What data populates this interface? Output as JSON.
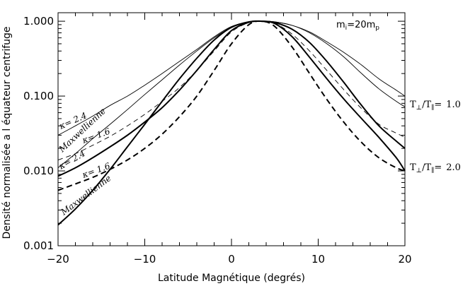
{
  "chart_data": {
    "type": "line",
    "title": "",
    "xlabel": "Latitude Magnétique (degrés)",
    "ylabel": "Densité normalisée a l équateur centrifuge",
    "xlim": [
      -20,
      20
    ],
    "ylim": [
      0.001,
      1.3
    ],
    "yscale": "log",
    "x_ticks": [
      "−20",
      "−10",
      "0",
      "10",
      "20"
    ],
    "y_ticks": [
      "0.001",
      "0.010",
      "0.100",
      "1.000"
    ],
    "grid": false,
    "annotations": {
      "mass": "m",
      "mass_sub": "i",
      "mass_eq": "=20m",
      "mass_sub2": "p",
      "ratio_prefix": "T",
      "ratio_perp": "⊥",
      "ratio_mid": "/T",
      "ratio_par": "∥",
      "ratio_eq": "=",
      "ratio_1": "1.0",
      "ratio_2": "2.0",
      "kappa_sym": "κ",
      "kappa_a": "= 2.4",
      "kappa_b": "= 1.6",
      "maxw": "Maxwellienne"
    },
    "series": [
      {
        "anisotropy": "1.0",
        "model": "Maxwellienne",
        "style": "thin-solid",
        "x": [
          -20,
          -18,
          -16,
          -14,
          -12,
          -10,
          -8,
          -6,
          -4,
          -2,
          0,
          2,
          3.5,
          5,
          7,
          9,
          11,
          13,
          15,
          17,
          19,
          20
        ],
        "y": [
          0.011,
          0.017,
          0.027,
          0.042,
          0.066,
          0.105,
          0.165,
          0.26,
          0.4,
          0.6,
          0.83,
          0.98,
          1.0,
          0.98,
          0.88,
          0.7,
          0.5,
          0.33,
          0.2,
          0.125,
          0.085,
          0.072
        ]
      },
      {
        "anisotropy": "1.0",
        "model": "κ = 2.4",
        "style": "thin-solid",
        "x": [
          -20,
          -18,
          -16,
          -14,
          -12,
          -10,
          -8,
          -6,
          -4,
          -2,
          0,
          2,
          3.5,
          5,
          7,
          9,
          11,
          13,
          15,
          17,
          19,
          20
        ],
        "y": [
          0.03,
          0.04,
          0.054,
          0.075,
          0.1,
          0.14,
          0.2,
          0.29,
          0.42,
          0.62,
          0.85,
          0.98,
          1.0,
          0.98,
          0.88,
          0.72,
          0.53,
          0.38,
          0.26,
          0.17,
          0.12,
          0.1
        ]
      },
      {
        "anisotropy": "1.0",
        "model": "κ = 1.6",
        "style": "thin-dashed",
        "x": [
          -20,
          -18,
          -16,
          -14,
          -12,
          -10,
          -8,
          -6,
          -4,
          -2,
          0,
          2,
          3.5,
          5,
          7,
          9,
          11,
          13,
          15,
          17,
          19,
          20
        ],
        "y": [
          0.014,
          0.017,
          0.022,
          0.029,
          0.04,
          0.057,
          0.085,
          0.13,
          0.22,
          0.4,
          0.72,
          0.96,
          1.0,
          0.94,
          0.67,
          0.4,
          0.22,
          0.12,
          0.068,
          0.042,
          0.032,
          0.028
        ]
      },
      {
        "anisotropy": "2.0",
        "model": "Maxwellienne",
        "style": "thick-solid",
        "x": [
          -20,
          -18,
          -16,
          -14,
          -12,
          -10,
          -8,
          -6,
          -4,
          -2,
          0,
          2,
          3.5,
          5,
          7,
          9,
          11,
          13,
          15,
          17,
          19,
          20
        ],
        "y": [
          0.0019,
          0.0031,
          0.0055,
          0.0105,
          0.021,
          0.042,
          0.085,
          0.17,
          0.32,
          0.56,
          0.83,
          0.98,
          1.0,
          0.96,
          0.78,
          0.52,
          0.29,
          0.15,
          0.075,
          0.04,
          0.025,
          0.02
        ]
      },
      {
        "anisotropy": "2.0",
        "model": "κ = 2.4",
        "style": "thick-solid",
        "x": [
          -20,
          -18,
          -16,
          -14,
          -12,
          -10,
          -8,
          -6,
          -4,
          -2,
          0,
          2,
          3.5,
          5,
          7,
          9,
          11,
          13,
          15,
          17,
          19,
          20
        ],
        "y": [
          0.0085,
          0.011,
          0.015,
          0.021,
          0.03,
          0.045,
          0.07,
          0.12,
          0.22,
          0.42,
          0.75,
          0.97,
          1.0,
          0.93,
          0.62,
          0.33,
          0.17,
          0.09,
          0.05,
          0.028,
          0.015,
          0.01
        ]
      },
      {
        "anisotropy": "2.0",
        "model": "κ = 1.6",
        "style": "thick-dashed",
        "x": [
          -20,
          -18,
          -16,
          -14,
          -12,
          -10,
          -8,
          -6,
          -4,
          -2,
          0,
          2,
          3.5,
          5,
          7,
          9,
          11,
          13,
          15,
          17,
          19,
          20
        ],
        "y": [
          0.0055,
          0.0067,
          0.0082,
          0.0105,
          0.014,
          0.02,
          0.031,
          0.053,
          0.1,
          0.22,
          0.5,
          0.9,
          1.0,
          0.85,
          0.45,
          0.2,
          0.09,
          0.044,
          0.024,
          0.015,
          0.011,
          0.01
        ]
      }
    ]
  }
}
